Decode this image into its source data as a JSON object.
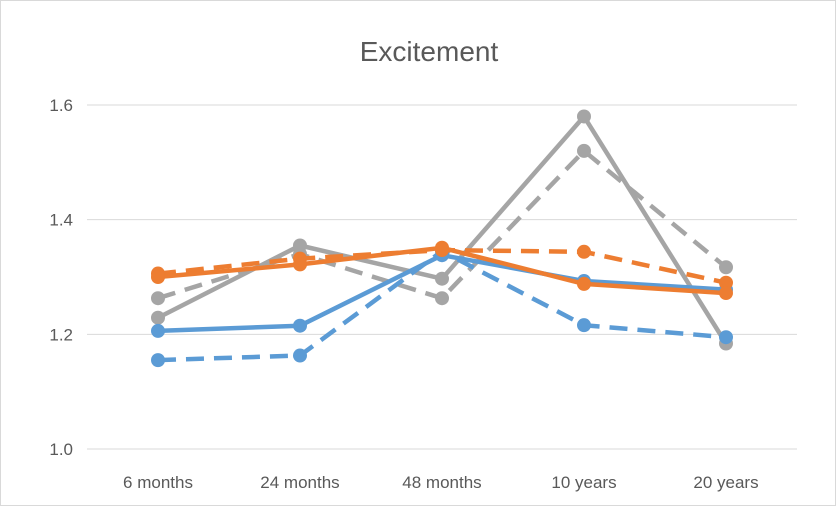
{
  "chart_data": {
    "type": "line",
    "title": "Excitement",
    "xlabel": "",
    "ylabel": "",
    "categories": [
      "6 months",
      "24 months",
      "48 months",
      "10 years",
      "20 years"
    ],
    "ylim": [
      1.0,
      1.6
    ],
    "yticks": [
      1.0,
      1.2,
      1.4,
      1.6
    ],
    "ytick_labels": [
      "1.0",
      "1.2",
      "1.4",
      "1.6"
    ],
    "grid": true,
    "legend": "none",
    "series": [
      {
        "color": "#a5a5a5",
        "dash": "dashed",
        "values": [
          1.263,
          1.34,
          1.263,
          1.52,
          1.317
        ]
      },
      {
        "color": "#a5a5a5",
        "dash": "solid",
        "values": [
          1.229,
          1.355,
          1.297,
          1.58,
          1.184
        ]
      },
      {
        "color": "#5b9bd5",
        "dash": "dashed",
        "values": [
          1.155,
          1.163,
          1.345,
          1.216,
          1.195
        ]
      },
      {
        "color": "#5b9bd5",
        "dash": "solid",
        "values": [
          1.206,
          1.215,
          1.338,
          1.293,
          1.278
        ]
      },
      {
        "color": "#ed7d31",
        "dash": "dashed",
        "values": [
          1.306,
          1.332,
          1.347,
          1.344,
          1.29
        ]
      },
      {
        "color": "#ed7d31",
        "dash": "solid",
        "values": [
          1.3,
          1.322,
          1.351,
          1.288,
          1.272
        ]
      }
    ]
  }
}
